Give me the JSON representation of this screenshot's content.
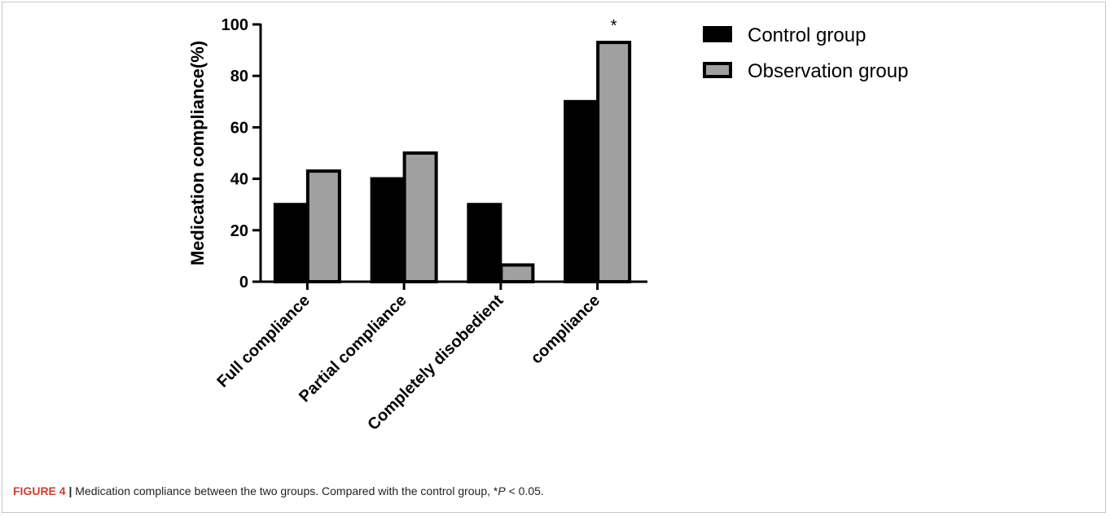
{
  "chart_data": {
    "type": "bar",
    "categories": [
      "Full compliance",
      "Partial compliance",
      "Completely disobedient",
      "compliance"
    ],
    "series": [
      {
        "name": "Control group",
        "values": [
          30,
          40,
          30,
          70
        ],
        "color": "#000000"
      },
      {
        "name": "Observation group",
        "values": [
          43,
          50,
          6.5,
          93
        ],
        "color": "#a0a0a0"
      }
    ],
    "ylabel": "Medication compliance(%)",
    "xlabel": "",
    "ylim": [
      0,
      100
    ],
    "yticks": [
      0,
      20,
      40,
      60,
      80,
      100
    ],
    "annotations": [
      {
        "category": "compliance",
        "series": "Observation group",
        "text": "*"
      }
    ],
    "grid": false,
    "legend_position": "right"
  },
  "caption": {
    "label": "FIGURE 4",
    "separator": "|",
    "text_before": "Medication compliance between the two groups. Compared with the control group, *",
    "p_symbol": "P",
    "text_after": " < 0.05."
  }
}
